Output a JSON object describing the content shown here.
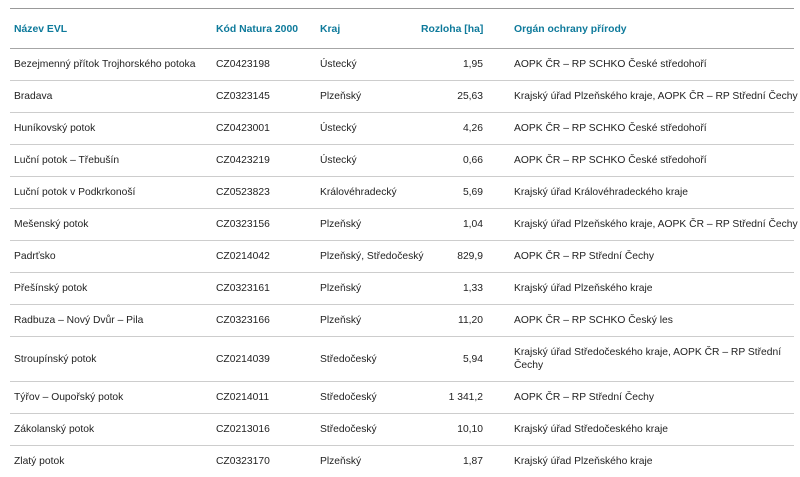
{
  "colors": {
    "header_text": "#0e7a9b",
    "body_text": "#222222",
    "outer_line": "#999999",
    "inner_line": "#cdcdcd"
  },
  "table": {
    "columns": [
      {
        "key": "nazev",
        "label": "Název EVL"
      },
      {
        "key": "kod",
        "label": "Kód Natura 2000"
      },
      {
        "key": "kraj",
        "label": "Kraj"
      },
      {
        "key": "rozloha",
        "label": "Rozloha [ha]"
      },
      {
        "key": "organ",
        "label": "Orgán ochrany přírody"
      }
    ],
    "rows": [
      [
        "Bezejmenný přítok Trojhorského potoka",
        "CZ0423198",
        "Ústecký",
        "1,95",
        "AOPK ČR – RP SCHKO České středohoří"
      ],
      [
        "Bradava",
        "CZ0323145",
        "Plzeňský",
        "25,63",
        "Krajský úřad Plzeňského kraje, AOPK ČR – RP Střední Čechy"
      ],
      [
        "Huníkovský potok",
        "CZ0423001",
        "Ústecký",
        "4,26",
        "AOPK ČR – RP SCHKO České středohoří"
      ],
      [
        "Luční potok – Třebušín",
        "CZ0423219",
        "Ústecký",
        "0,66",
        "AOPK ČR – RP SCHKO České středohoří"
      ],
      [
        "Luční potok v Podkrkonoší",
        "CZ0523823",
        "Královéhradecký",
        "5,69",
        "Krajský úřad Královéhradeckého kraje"
      ],
      [
        "Mešenský potok",
        "CZ0323156",
        "Plzeňský",
        "1,04",
        "Krajský úřad Plzeňského kraje, AOPK ČR – RP Střední Čechy"
      ],
      [
        "Padrťsko",
        "CZ0214042",
        "Plzeňský, Středočeský",
        "829,9",
        "AOPK ČR – RP Střední Čechy"
      ],
      [
        "Přešínský potok",
        "CZ0323161",
        "Plzeňský",
        "1,33",
        "Krajský úřad Plzeňského kraje"
      ],
      [
        "Radbuza – Nový Dvůr – Pila",
        "CZ0323166",
        "Plzeňský",
        "11,20",
        "AOPK ČR – RP SCHKO Český les"
      ],
      [
        "Stroupínský potok",
        "CZ0214039",
        "Středočeský",
        "5,94",
        "Krajský úřad Středočeského kraje, AOPK ČR – RP Střední\nČechy"
      ],
      [
        "Týřov – Oupořský potok",
        "CZ0214011",
        "Středočeský",
        "1 341,2",
        "AOPK ČR – RP Střední Čechy"
      ],
      [
        "Zákolanský potok",
        "CZ0213016",
        "Středočeský",
        "10,10",
        "Krajský úřad Středočeského kraje"
      ],
      [
        "Zlatý potok",
        "CZ0323170",
        "Plzeňský",
        "1,87",
        "Krajský úřad Plzeňského kraje"
      ]
    ]
  }
}
